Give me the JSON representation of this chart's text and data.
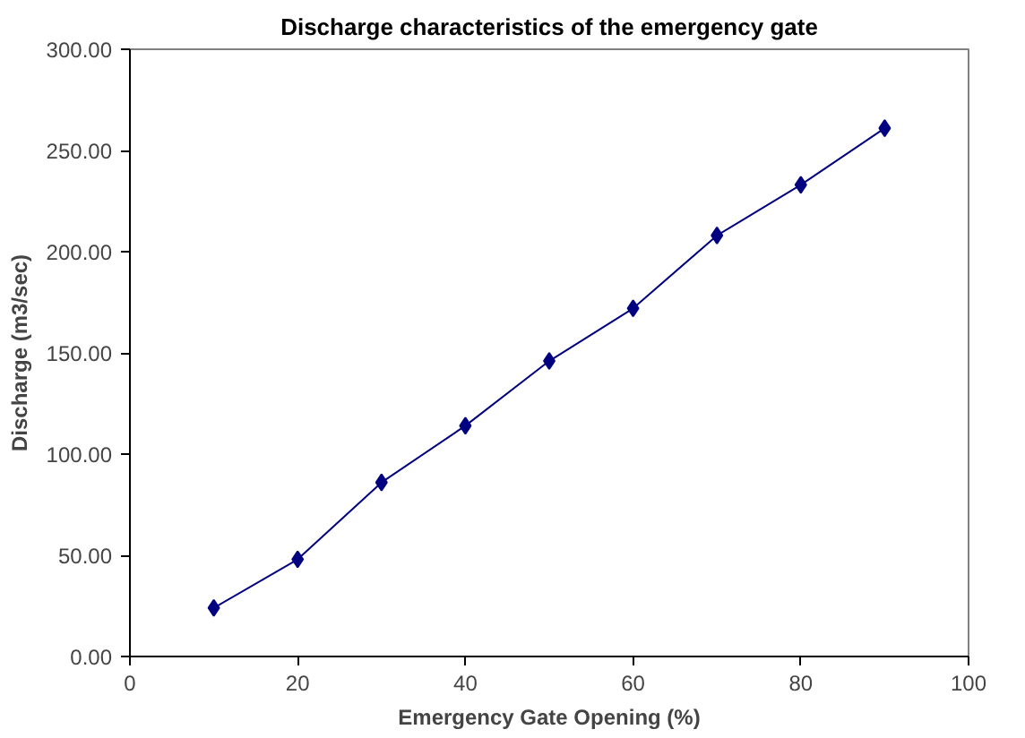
{
  "chart_data": {
    "type": "line",
    "title": "Discharge characteristics of the emergency gate",
    "xlabel": "Emergency Gate Opening (%)",
    "ylabel": "Discharge (m3/sec)",
    "x": [
      10,
      20,
      30,
      40,
      50,
      60,
      70,
      80,
      90
    ],
    "series": [
      {
        "color": "#000080",
        "values": [
          24,
          48,
          86,
          114,
          146,
          172,
          208,
          233,
          261
        ]
      }
    ],
    "xlim": [
      0,
      100
    ],
    "xticks": [
      0,
      20,
      40,
      60,
      80,
      100
    ],
    "ylim": [
      0,
      300
    ],
    "yticks": [
      {
        "value": 0,
        "label": "0.00"
      },
      {
        "value": 50,
        "label": "50.00"
      },
      {
        "value": 100,
        "label": "100.00"
      },
      {
        "value": 150,
        "label": "150.00"
      },
      {
        "value": 200,
        "label": "200.00"
      },
      {
        "value": 250,
        "label": "250.00"
      },
      {
        "value": 300,
        "label": "300.00"
      }
    ],
    "grid": false,
    "marker": "diamond",
    "line_style": "solid"
  }
}
